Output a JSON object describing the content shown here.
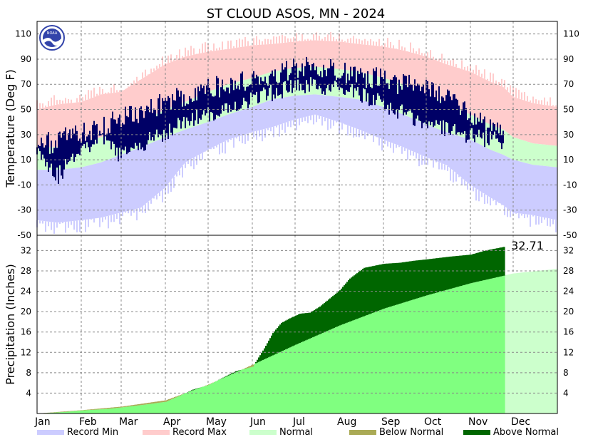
{
  "title": "ST CLOUD      ASOS, MN - 2024",
  "colors": {
    "record_min": "#ccccff",
    "record_max": "#ffcccc",
    "normal_temp": "#ccffcc",
    "observed": "#000066",
    "normal_precip": "#80ff80",
    "normal_precip_future": "#ccffcc",
    "above_normal": "#006600",
    "below_normal": "#aaaa55",
    "noaa_logo": "#3344aa"
  },
  "chart_data": [
    {
      "type": "area",
      "panel": "temperature",
      "ylabel": "Temperature (Deg F)",
      "ylim": [
        -50,
        120
      ],
      "yticks": [
        110,
        90,
        70,
        50,
        30,
        10,
        -10,
        -30,
        -50
      ],
      "grid": true,
      "months": [
        "Jan",
        "Feb",
        "Mar",
        "Apr",
        "May",
        "Jun",
        "Jul",
        "Aug",
        "Sep",
        "Oct",
        "Nov",
        "Dec"
      ],
      "x_day_of_year": [
        1,
        15,
        32,
        46,
        60,
        74,
        91,
        105,
        121,
        135,
        152,
        166,
        182,
        196,
        213,
        227,
        244,
        258,
        274,
        288,
        305,
        319,
        328,
        335,
        349,
        366
      ],
      "record_max": [
        50,
        54,
        56,
        62,
        64,
        74,
        86,
        92,
        96,
        98,
        101,
        102,
        104,
        105,
        104,
        102,
        100,
        97,
        92,
        86,
        80,
        72,
        68,
        60,
        55,
        52
      ],
      "normal_high": [
        20,
        20,
        24,
        28,
        34,
        40,
        50,
        56,
        64,
        70,
        75,
        80,
        83,
        84,
        82,
        80,
        75,
        70,
        62,
        55,
        46,
        38,
        34,
        28,
        23,
        21
      ],
      "normal_low": [
        2,
        2,
        4,
        8,
        14,
        20,
        28,
        34,
        40,
        46,
        52,
        58,
        61,
        62,
        60,
        58,
        52,
        46,
        38,
        32,
        26,
        18,
        14,
        10,
        6,
        4
      ],
      "record_min": [
        -38,
        -40,
        -38,
        -36,
        -32,
        -28,
        -12,
        8,
        18,
        26,
        32,
        36,
        42,
        46,
        40,
        34,
        26,
        20,
        12,
        6,
        -10,
        -20,
        -26,
        -32,
        -34,
        -38
      ],
      "observed_high_envelope": [
        30,
        34,
        40,
        44,
        54,
        58,
        64,
        70,
        76,
        78,
        82,
        86,
        90,
        94,
        90,
        86,
        84,
        80,
        76,
        70,
        62,
        50,
        40
      ],
      "observed_low_envelope": [
        12,
        -10,
        12,
        20,
        6,
        16,
        24,
        34,
        38,
        44,
        50,
        56,
        60,
        62,
        60,
        56,
        50,
        42,
        34,
        30,
        24,
        20,
        18
      ],
      "observed_end_day": 328
    },
    {
      "type": "area",
      "panel": "precipitation",
      "ylabel": "Precipitation (Inches)",
      "ylim": [
        0,
        35
      ],
      "yticks": [
        32,
        28,
        24,
        20,
        16,
        12,
        8,
        4
      ],
      "grid": true,
      "x_day_of_year": [
        1,
        32,
        60,
        91,
        121,
        152,
        182,
        213,
        244,
        274,
        305,
        335,
        366
      ],
      "normal_cumulative": [
        0,
        0.65,
        1.35,
        2.6,
        5.7,
        9.6,
        13.5,
        17.3,
        20.6,
        23.2,
        25.6,
        27.5,
        28.4
      ],
      "observed_cumulative": {
        "x_day_of_year": [
          1,
          20,
          32,
          50,
          60,
          75,
          91,
          100,
          110,
          121,
          130,
          140,
          152,
          160,
          166,
          172,
          178,
          185,
          192,
          199,
          206,
          213,
          220,
          230,
          244,
          255,
          265,
          275,
          290,
          305,
          315,
          328
        ],
        "values": [
          0,
          0.3,
          0.6,
          0.9,
          1.2,
          1.7,
          2.3,
          3.4,
          4.7,
          5.6,
          6.9,
          8.3,
          9.2,
          12.8,
          15.8,
          17.8,
          18.7,
          19.6,
          19.8,
          21.0,
          22.6,
          24.2,
          26.5,
          28.6,
          29.4,
          29.6,
          30.0,
          30.3,
          30.8,
          31.2,
          32.0,
          32.71
        ]
      },
      "total_label": "32.71",
      "observed_end_day": 328
    }
  ],
  "legend": [
    {
      "label": "Record Min",
      "color": "#ccccff"
    },
    {
      "label": "Record Max",
      "color": "#ffcccc"
    },
    {
      "label": "Normal",
      "color": "#ccffcc"
    },
    {
      "label": "Below Normal",
      "color": "#aaaa55"
    },
    {
      "label": "Above Normal",
      "color": "#006600"
    }
  ]
}
